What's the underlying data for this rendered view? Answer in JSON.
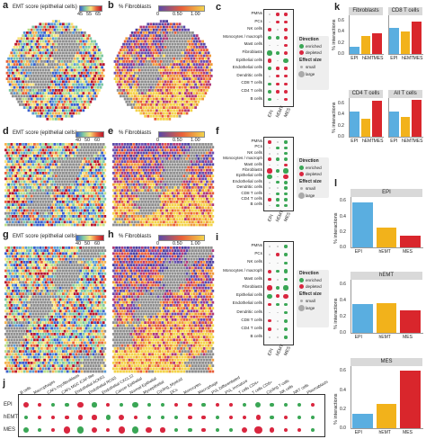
{
  "panel_letters": [
    "a",
    "b",
    "c",
    "d",
    "e",
    "f",
    "g",
    "h",
    "i",
    "j",
    "k",
    "l"
  ],
  "map_panels": {
    "a": {
      "title": "EMT score (epithelial cells)",
      "ticks": [
        "45",
        "55",
        "65"
      ],
      "scale": "emt"
    },
    "b": {
      "title": "% Fibroblasts",
      "ticks": [
        "0",
        "0.50",
        "1.00"
      ],
      "scale": "fib"
    },
    "d": {
      "title": "EMT score (epithelial cells)",
      "ticks": [
        "40",
        "50",
        "60"
      ],
      "scale": "emt"
    },
    "e": {
      "title": "% Fibroblasts",
      "ticks": [
        "0",
        "0.50",
        "1.00"
      ],
      "scale": "fib"
    },
    "g": {
      "title": "EMT score (epithelial cells)",
      "ticks": [
        "40",
        "50",
        "60"
      ],
      "scale": "emt"
    },
    "h": {
      "title": "% Fibroblasts",
      "ticks": [
        "0",
        "0.50",
        "1.00"
      ],
      "scale": "fib"
    }
  },
  "dot_panels": {
    "cell_types": [
      "PMNs",
      "PCs",
      "NK cells",
      "Monocytes / macroph",
      "Mast cells",
      "Fibroblasts",
      "Epithelial cells",
      "Endothelial cells",
      "Dendritic cells",
      "CD8 T cells",
      "CD4 T cells",
      "B cells"
    ],
    "columns": [
      "EPI",
      "hEMT",
      "MES"
    ],
    "legend": {
      "direction_title": "Direction",
      "enriched": "enriched",
      "depleted": "depleted",
      "effect_title": "Effect size",
      "small": "small",
      "large": "large"
    },
    "colors": {
      "enriched": "#3aa655",
      "depleted": "#d9263f"
    }
  },
  "panel_j": {
    "rows": [
      "EPI",
      "hEMT",
      "MES"
    ],
    "columns": [
      "B cells",
      "Macrophages",
      "CAFs myofibroblasts",
      "CAFs MSC iCAF-like",
      "Endothelial ACKR1",
      "Endothelial RGS5",
      "Endothelial CXCL12",
      "Cancer Epithelial",
      "Normal Epithelial",
      "Myoepithelial",
      "Cycling_Myeloid",
      "DCs",
      "Monocytes",
      "Macrophage",
      "PVL Differentiated",
      "PVL Immature",
      "T cells CD4+",
      "T cells CD8+",
      "Cycling T-cells",
      "NK cells",
      "NKT cells",
      "Plasmablasts"
    ]
  },
  "chart_data": [
    {
      "type": "bar",
      "panel": "k",
      "title": "Fibroblasts",
      "categories": [
        "EPI",
        "hEMT",
        "MES"
      ],
      "values": [
        0.13,
        0.33,
        0.37
      ],
      "ylim": [
        0,
        0.7
      ],
      "yticks": [
        "0.0",
        "0.2",
        "0.4",
        "0.6"
      ],
      "ylabel": "% interactions",
      "colors": [
        "#5aaee0",
        "#f2b21b",
        "#d9262c"
      ]
    },
    {
      "type": "bar",
      "panel": "k",
      "title": "CD8 T cells",
      "categories": [
        "EPI",
        "hEMT",
        "MES"
      ],
      "values": [
        0.47,
        0.4,
        0.58
      ],
      "ylim": [
        0,
        0.7
      ],
      "colors": [
        "#5aaee0",
        "#f2b21b",
        "#d9262c"
      ]
    },
    {
      "type": "bar",
      "panel": "k",
      "title": "CD4 T cells",
      "categories": [
        "EPI",
        "hEMT",
        "MES"
      ],
      "values": [
        0.45,
        0.32,
        0.65
      ],
      "ylim": [
        0,
        0.7
      ],
      "yticks": [
        "0.0",
        "0.2",
        "0.4",
        "0.6"
      ],
      "ylabel": "% interactions",
      "colors": [
        "#5aaee0",
        "#f2b21b",
        "#d9262c"
      ]
    },
    {
      "type": "bar",
      "panel": "k",
      "title": "All T cells",
      "categories": [
        "EPI",
        "hEMT",
        "MES"
      ],
      "values": [
        0.45,
        0.36,
        0.66
      ],
      "ylim": [
        0,
        0.7
      ],
      "colors": [
        "#5aaee0",
        "#f2b21b",
        "#d9262c"
      ]
    },
    {
      "type": "bar",
      "panel": "l",
      "title": "EPI",
      "categories": [
        "EPI",
        "hEMT",
        "MES"
      ],
      "values": [
        0.58,
        0.26,
        0.15
      ],
      "ylim": [
        0,
        0.65
      ],
      "yticks": [
        "0.0",
        "0.2",
        "0.4",
        "0.6"
      ],
      "ylabel": "% interactions",
      "colors": [
        "#5aaee0",
        "#f2b21b",
        "#d9262c"
      ]
    },
    {
      "type": "bar",
      "panel": "l",
      "title": "hEMT",
      "categories": [
        "EPI",
        "hEMT",
        "MES"
      ],
      "values": [
        0.35,
        0.36,
        0.27
      ],
      "ylim": [
        0,
        0.65
      ],
      "yticks": [
        "0.0",
        "0.2",
        "0.4",
        "0.6"
      ],
      "ylabel": "% interactions",
      "colors": [
        "#5aaee0",
        "#f2b21b",
        "#d9262c"
      ]
    },
    {
      "type": "bar",
      "panel": "l",
      "title": "MES",
      "categories": [
        "EPI",
        "hEMT",
        "MES"
      ],
      "values": [
        0.15,
        0.25,
        0.6
      ],
      "ylim": [
        0,
        0.65
      ],
      "yticks": [
        "0.0",
        "0.2",
        "0.4",
        "0.6"
      ],
      "ylabel": "% interactions",
      "colors": [
        "#5aaee0",
        "#f2b21b",
        "#d9262c"
      ]
    }
  ]
}
